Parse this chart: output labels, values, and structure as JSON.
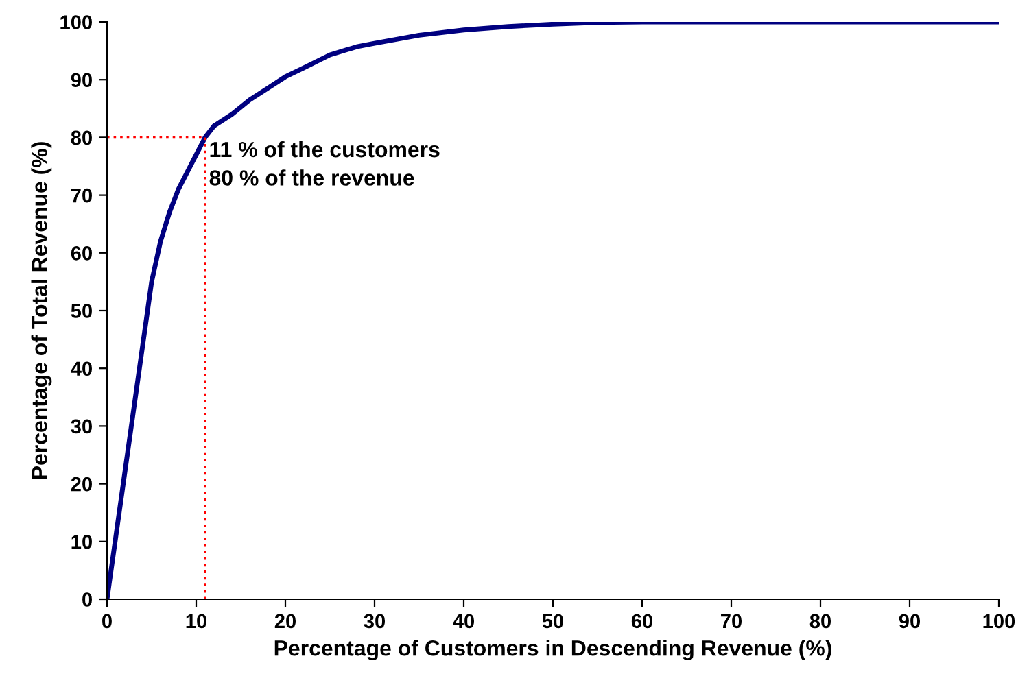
{
  "chart_data": {
    "type": "line",
    "xlabel": "Percentage of Customers in Descending Revenue (%)",
    "ylabel": "Percentage of Total Revenue (%)",
    "xlim": [
      0,
      100
    ],
    "ylim": [
      0,
      100
    ],
    "xticks": [
      0,
      10,
      20,
      30,
      40,
      50,
      60,
      70,
      80,
      90,
      100
    ],
    "yticks": [
      0,
      10,
      20,
      30,
      40,
      50,
      60,
      70,
      80,
      90,
      100
    ],
    "grid": false,
    "legend": false,
    "marker": "none",
    "series": [
      {
        "color": "#000080",
        "line_style": "solid",
        "x": [
          0,
          1,
          2,
          3,
          4,
          5,
          6,
          7,
          8,
          9,
          10,
          11,
          12,
          14,
          16,
          18,
          20,
          22,
          25,
          28,
          30,
          35,
          40,
          45,
          50,
          55,
          60,
          70,
          80,
          90,
          100
        ],
        "values": [
          0,
          11,
          22,
          33,
          44,
          55,
          62,
          67,
          71,
          74,
          77,
          80,
          82,
          84,
          86.5,
          88.5,
          90.5,
          92,
          94.3,
          95.7,
          96.3,
          97.7,
          98.6,
          99.2,
          99.6,
          99.9,
          100,
          100,
          100,
          100,
          100
        ]
      },
      {
        "color": "#ff0000",
        "line_style": "dotted",
        "x": [
          0,
          11
        ],
        "values": [
          80,
          80
        ]
      },
      {
        "color": "#ff0000",
        "line_style": "dotted",
        "x": [
          11,
          11
        ],
        "values": [
          0,
          80
        ]
      }
    ],
    "annotations": [
      {
        "text": "11 % of the customers\n80 % of the revenue",
        "x": 11,
        "y": 80
      }
    ]
  }
}
